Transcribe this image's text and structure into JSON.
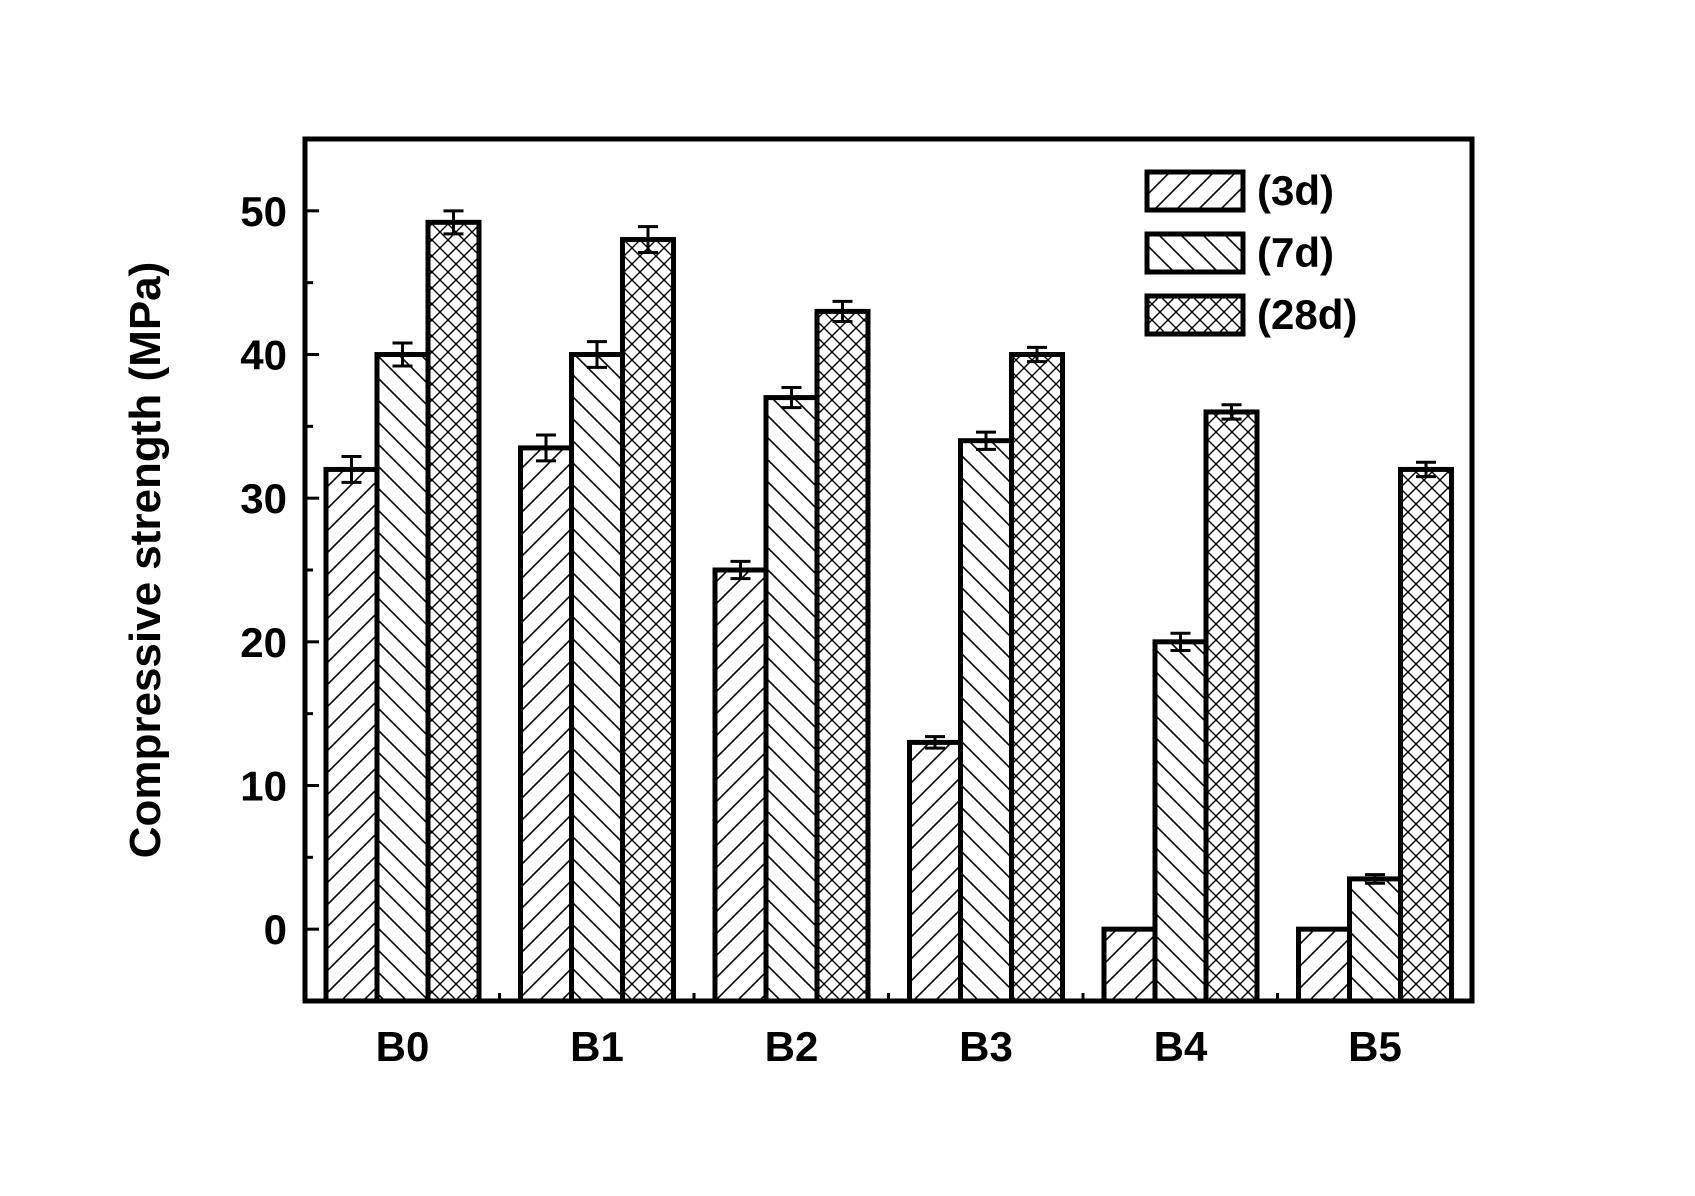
{
  "chart_data": {
    "type": "bar",
    "categories": [
      "B0",
      "B1",
      "B2",
      "B3",
      "B4",
      "B5"
    ],
    "series": [
      {
        "name": "(3d)",
        "pattern": "diagonal-up",
        "values": [
          32,
          33.5,
          25,
          13,
          0,
          0
        ],
        "errors": [
          0.9,
          0.9,
          0.6,
          0.4,
          0,
          0
        ]
      },
      {
        "name": "(7d)",
        "pattern": "diagonal-down",
        "values": [
          40,
          40,
          37,
          34,
          20,
          3.5
        ],
        "errors": [
          0.8,
          0.9,
          0.7,
          0.6,
          0.6,
          0.3
        ]
      },
      {
        "name": "(28d)",
        "pattern": "cross-hatch",
        "values": [
          49.2,
          48,
          43,
          40,
          36,
          32
        ],
        "errors": [
          0.8,
          0.9,
          0.7,
          0.5,
          0.5,
          0.5
        ]
      }
    ],
    "title": "",
    "xlabel": "",
    "ylabel": "Compressive strength (MPa)",
    "ylim": [
      -5,
      55
    ],
    "yticks": [
      0,
      10,
      20,
      30,
      40,
      50
    ],
    "grid": false,
    "legend_position": "top-right",
    "colors": {
      "fill": "#ffffff",
      "stroke": "#000000"
    }
  }
}
